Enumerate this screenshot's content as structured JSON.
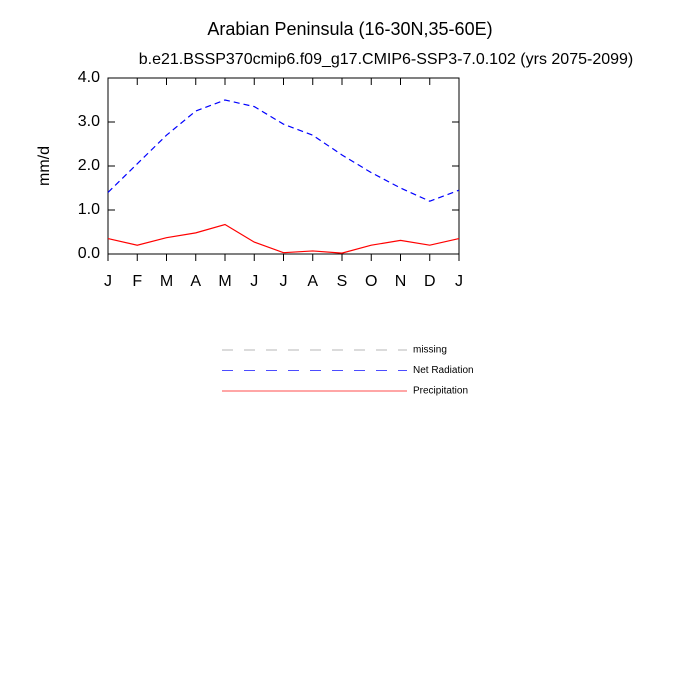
{
  "chart_data": {
    "type": "line",
    "title": "Arabian Peninsula (16-30N,35-60E)",
    "subtitle": "b.e21.BSSP370cmip6.f09_g17.CMIP6-SSP3-7.0.102 (yrs 2075-2099)",
    "y_label": "mm/d",
    "categories": [
      "J",
      "F",
      "M",
      "A",
      "M",
      "J",
      "J",
      "A",
      "S",
      "O",
      "N",
      "D",
      "J"
    ],
    "ylim": [
      0,
      4
    ],
    "yticks": [
      {
        "value": 0,
        "label": "0.0"
      },
      {
        "value": 1,
        "label": "1.0"
      },
      {
        "value": 2,
        "label": "2.0"
      },
      {
        "value": 3,
        "label": "3.0"
      },
      {
        "value": 4,
        "label": "4.0"
      }
    ],
    "series": [
      {
        "name": "missing",
        "color": "#999999",
        "dash": true,
        "values": [
          null,
          null,
          null,
          null,
          null,
          null,
          null,
          null,
          null,
          null,
          null,
          null,
          null
        ]
      },
      {
        "name": "Net Radiation",
        "color": "#0000ff",
        "dash": true,
        "values": [
          1.4,
          2.05,
          2.7,
          3.25,
          3.5,
          3.35,
          2.95,
          2.7,
          2.25,
          1.85,
          1.5,
          1.2,
          1.45
        ]
      },
      {
        "name": "Precipitation",
        "color": "#ff0000",
        "dash": false,
        "values": [
          0.35,
          0.2,
          0.37,
          0.48,
          0.67,
          0.27,
          0.03,
          0.07,
          0.02,
          0.2,
          0.31,
          0.2,
          0.35
        ]
      }
    ]
  }
}
